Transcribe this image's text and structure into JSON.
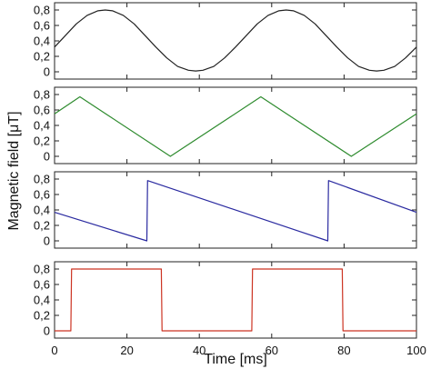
{
  "chart_data": {
    "type": "line",
    "layout": "four vertically stacked panels sharing one x axis",
    "shared_xlabel": "Time [ms]",
    "shared_ylabel": "Magnetic field [μT]",
    "xlim": [
      0,
      100
    ],
    "x_ticks": [
      "0",
      "20",
      "40",
      "60",
      "80",
      "100"
    ],
    "ylim": [
      0,
      0.8
    ],
    "y_ticks": [
      "0",
      "0,2",
      "0,4",
      "0,6",
      "0,8"
    ],
    "grid": false,
    "legend": "none",
    "panels": [
      {
        "waveform": "sine",
        "color": "#222222",
        "x": [
          0,
          3,
          6,
          9,
          12,
          14,
          16,
          19,
          22,
          25,
          28,
          31,
          34,
          37,
          39,
          41,
          44,
          47,
          50,
          53,
          56,
          59,
          62,
          64,
          66,
          69,
          72,
          75,
          78,
          81,
          84,
          87,
          89,
          91,
          94,
          97,
          100
        ],
        "y": [
          0.32,
          0.47,
          0.62,
          0.73,
          0.79,
          0.8,
          0.79,
          0.73,
          0.62,
          0.47,
          0.32,
          0.18,
          0.07,
          0.02,
          0.01,
          0.02,
          0.07,
          0.18,
          0.32,
          0.47,
          0.62,
          0.73,
          0.79,
          0.8,
          0.79,
          0.73,
          0.62,
          0.47,
          0.32,
          0.18,
          0.07,
          0.02,
          0.01,
          0.02,
          0.07,
          0.18,
          0.32
        ]
      },
      {
        "waveform": "triangle",
        "color": "#2e8b2e",
        "x": [
          0,
          7,
          32,
          57,
          82,
          100
        ],
        "y": [
          0.55,
          0.77,
          0.0,
          0.77,
          0.0,
          0.55
        ]
      },
      {
        "waveform": "sawtooth",
        "color": "#2a2aa0",
        "x": [
          0,
          25.5,
          25.7,
          75.5,
          75.7,
          100
        ],
        "y": [
          0.37,
          0.0,
          0.78,
          0.0,
          0.78,
          0.37
        ]
      },
      {
        "waveform": "square",
        "color": "#cc3322",
        "x": [
          0,
          4.5,
          4.7,
          29.5,
          29.7,
          54.5,
          54.7,
          79.5,
          79.7,
          100
        ],
        "y": [
          0.0,
          0.0,
          0.8,
          0.8,
          0.0,
          0.0,
          0.8,
          0.8,
          0.0,
          0.0
        ]
      }
    ]
  }
}
